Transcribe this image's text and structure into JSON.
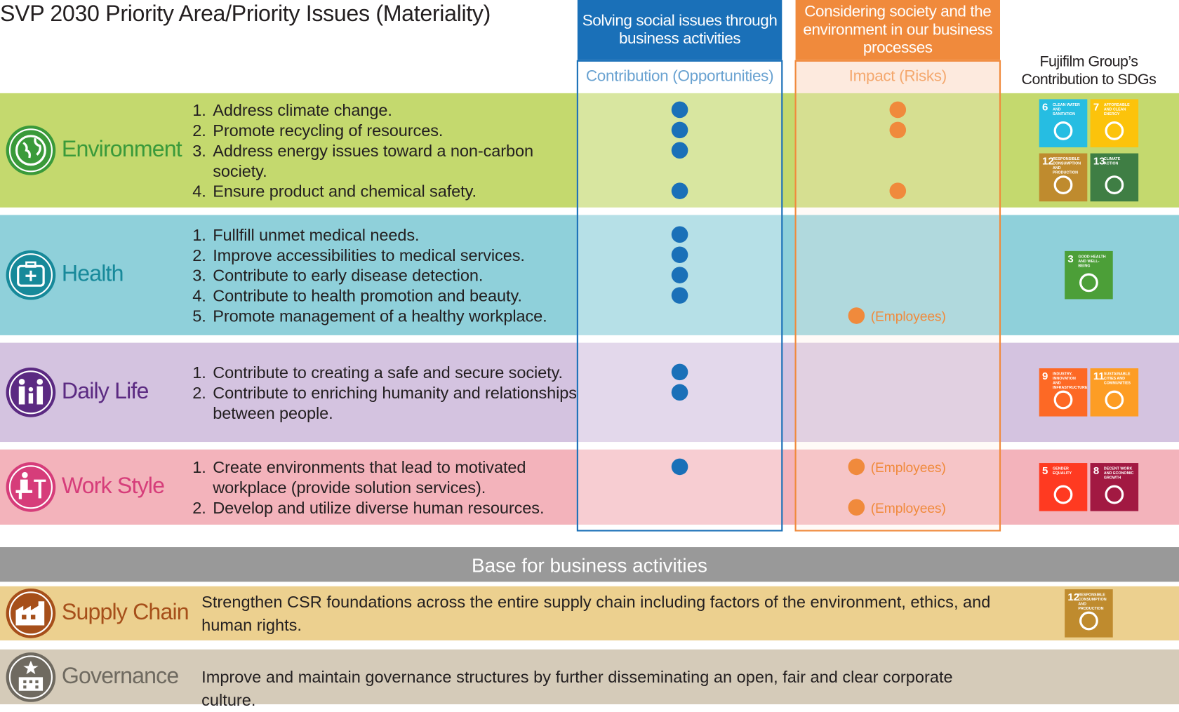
{
  "title": "SVP 2030 Priority Area/Priority Issues (Materiality)",
  "columns": {
    "contribution": {
      "header": "Solving social issues through business activities",
      "subheader": "Contribution (Opportunities)"
    },
    "impact": {
      "header": "Considering society and the environment in our business processes",
      "subheader": "Impact (Risks)"
    },
    "sdgs": {
      "header": "Fujifilm Group’s Contribution to SDGs"
    }
  },
  "areas": [
    {
      "name": "Environment",
      "issues": [
        {
          "number": "1.",
          "text": "Address climate change.",
          "contribution": true,
          "impact": true
        },
        {
          "number": "2.",
          "text": "Promote recycling of resources.",
          "contribution": true,
          "impact": true
        },
        {
          "number": "3.",
          "text": "Address energy issues toward a non-carbon society.",
          "contribution": true,
          "impact": false
        },
        {
          "number": "4.",
          "text": "Ensure product and chemical safety.",
          "contribution": true,
          "impact": true
        }
      ],
      "sdgs": [
        {
          "number": "6",
          "label": "CLEAN WATER AND SANITATION"
        },
        {
          "number": "7",
          "label": "AFFORDABLE AND CLEAN ENERGY"
        },
        {
          "number": "12",
          "label": "RESPONSIBLE CONSUMPTION AND PRODUCTION"
        },
        {
          "number": "13",
          "label": "CLIMATE ACTION"
        }
      ]
    },
    {
      "name": "Health",
      "issues": [
        {
          "number": "1.",
          "text": "Fullfill unmet medical needs.",
          "contribution": true,
          "impact": false
        },
        {
          "number": "2.",
          "text": "Improve accessibilities to medical services.",
          "contribution": true,
          "impact": false
        },
        {
          "number": "3.",
          "text": "Contribute to early disease detection.",
          "contribution": true,
          "impact": false
        },
        {
          "number": "4.",
          "text": "Contribute to health promotion and beauty.",
          "contribution": true,
          "impact": false
        },
        {
          "number": "5.",
          "text": "Promote management of a healthy workplace.",
          "contribution": false,
          "impact": true,
          "impact_note": "(Employees)"
        }
      ],
      "sdgs": [
        {
          "number": "3",
          "label": "GOOD HEALTH AND WELL-BEING"
        }
      ]
    },
    {
      "name": "Daily Life",
      "issues": [
        {
          "number": "1.",
          "text": "Contribute to creating a safe and secure society.",
          "contribution": true,
          "impact": false
        },
        {
          "number": "2.",
          "text": "Contribute to enriching humanity and relationships between people.",
          "contribution": true,
          "impact": false
        }
      ],
      "sdgs": [
        {
          "number": "9",
          "label": "INDUSTRY, INNOVATION AND INFRASTRUCTURE"
        },
        {
          "number": "11",
          "label": "SUSTAINABLE CITIES AND COMMUNITIES"
        }
      ]
    },
    {
      "name": "Work Style",
      "issues": [
        {
          "number": "1.",
          "text": "Create environments that lead to motivated workplace (provide solution services).",
          "contribution": true,
          "impact": true,
          "impact_note": "(Employees)"
        },
        {
          "number": "2.",
          "text": "Develop and utilize diverse human resources.",
          "contribution": false,
          "impact": true,
          "impact_note": "(Employees)"
        }
      ],
      "sdgs": [
        {
          "number": "5",
          "label": "GENDER EQUALITY"
        },
        {
          "number": "8",
          "label": "DECENT WORK AND ECONOMIC GROWTH"
        }
      ]
    }
  ],
  "base": {
    "title": "Base for business activities",
    "items": [
      {
        "name": "Supply Chain",
        "text": "Strengthen CSR foundations across the entire supply chain including factors of the environment, ethics, and human rights.",
        "sdgs": [
          {
            "number": "12",
            "label": "RESPONSIBLE CONSUMPTION AND PRODUCTION"
          }
        ]
      },
      {
        "name": "Governance",
        "text": "Improve and maintain governance structures by further disseminating an open, fair and clear corporate culture.",
        "sdgs": []
      }
    ]
  }
}
